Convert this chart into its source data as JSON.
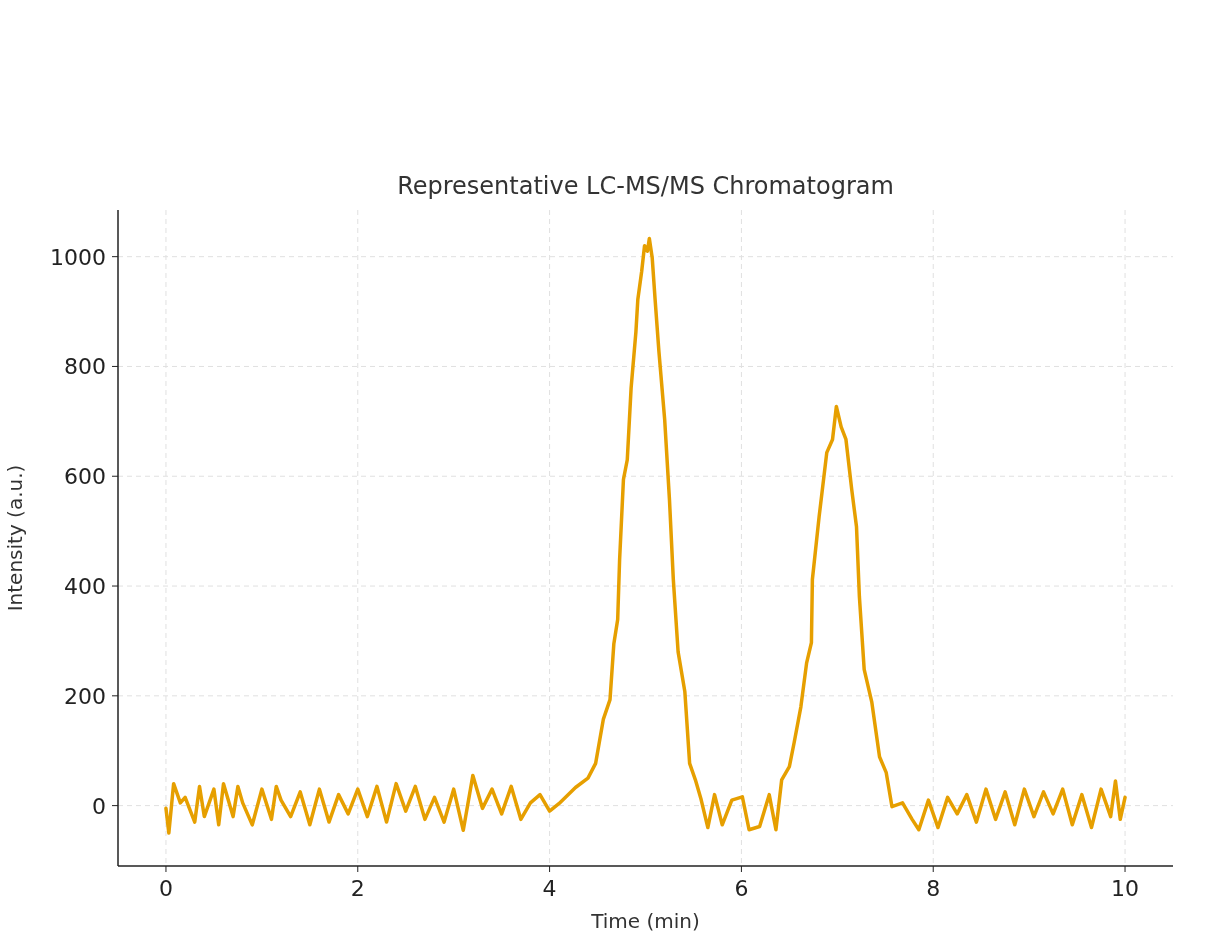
{
  "chart_data": {
    "type": "line",
    "title": "Representative LC-MS/MS Chromatogram",
    "xlabel": "Time (min)",
    "ylabel": "Intensity (a.u.)",
    "xlim": [
      -0.5,
      10.5
    ],
    "ylim": [
      -110,
      1085
    ],
    "xticks": [
      0,
      2,
      4,
      6,
      8,
      10
    ],
    "yticks": [
      0,
      200,
      400,
      600,
      800,
      1000
    ],
    "grid": true,
    "line_style": "solid",
    "series": [
      {
        "color": "#e69f00",
        "x": [
          0,
          0.03,
          0.08,
          0.15,
          0.2,
          0.3,
          0.35,
          0.4,
          0.5,
          0.55,
          0.6,
          0.7,
          0.75,
          0.8,
          0.9,
          1.0,
          1.1,
          1.15,
          1.2,
          1.3,
          1.4,
          1.5,
          1.6,
          1.7,
          1.8,
          1.9,
          2.0,
          2.1,
          2.2,
          2.3,
          2.4,
          2.5,
          2.6,
          2.7,
          2.8,
          2.9,
          3.0,
          3.1,
          3.2,
          3.3,
          3.4,
          3.5,
          3.6,
          3.7,
          3.8,
          3.9,
          4.0,
          4.1,
          4.27,
          4.4,
          4.48,
          4.56,
          4.63,
          4.67,
          4.71,
          4.73,
          4.77,
          4.81,
          4.85,
          4.9,
          4.92,
          4.96,
          4.99,
          5.02,
          5.04,
          5.07,
          5.1,
          5.14,
          5.2,
          5.25,
          5.29,
          5.34,
          5.41,
          5.46,
          5.52,
          5.58,
          5.65,
          5.72,
          5.8,
          5.9,
          6.01,
          6.08,
          6.19,
          6.29,
          6.36,
          6.42,
          6.5,
          6.55,
          6.62,
          6.68,
          6.73,
          6.74,
          6.81,
          6.89,
          6.95,
          6.99,
          7.04,
          7.09,
          7.15,
          7.2,
          7.23,
          7.28,
          7.36,
          7.44,
          7.51,
          7.57,
          7.68,
          7.78,
          7.85,
          7.95,
          8.05,
          8.15,
          8.25,
          8.35,
          8.45,
          8.55,
          8.65,
          8.75,
          8.85,
          8.95,
          9.05,
          9.15,
          9.25,
          9.35,
          9.45,
          9.55,
          9.65,
          9.75,
          9.85,
          9.9,
          9.95,
          10.0
        ],
        "values": [
          -5,
          -50,
          40,
          5,
          15,
          -30,
          35,
          -20,
          30,
          -35,
          40,
          -20,
          35,
          5,
          -35,
          30,
          -25,
          35,
          10,
          -20,
          25,
          -35,
          30,
          -30,
          20,
          -15,
          30,
          -20,
          35,
          -30,
          40,
          -10,
          35,
          -25,
          15,
          -30,
          30,
          -45,
          55,
          -5,
          30,
          -15,
          35,
          -25,
          5,
          20,
          -10,
          4,
          33,
          50,
          77,
          157,
          193,
          295,
          339,
          448,
          594,
          630,
          761,
          863,
          922,
          973,
          1020,
          1010,
          1033,
          998,
          922,
          827,
          703,
          557,
          412,
          280,
          208,
          77,
          47,
          11,
          -40,
          20,
          -35,
          10,
          16,
          -44,
          -38,
          20,
          -44,
          47,
          71,
          115,
          180,
          260,
          297,
          412,
          526,
          643,
          667,
          727,
          690,
          667,
          576,
          508,
          381,
          248,
          188,
          89,
          60,
          -2,
          5,
          -25,
          -44,
          10,
          -40,
          15,
          -15,
          20,
          -30,
          30,
          -25,
          25,
          -35,
          30,
          -20,
          25,
          -15,
          30,
          -35,
          20,
          -40,
          30,
          -20,
          45,
          -25,
          15
        ]
      }
    ]
  }
}
